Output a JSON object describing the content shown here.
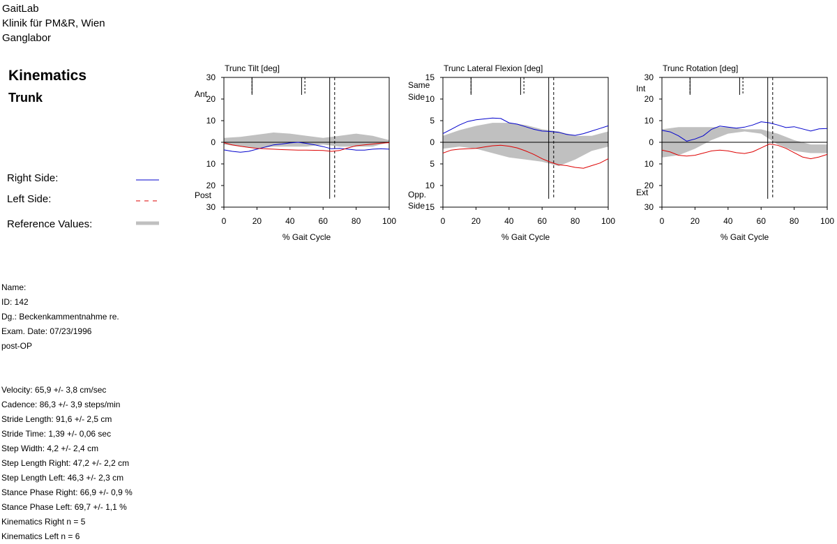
{
  "header": {
    "line1": "GaitLab",
    "line2": "Klinik für PM&R, Wien",
    "line3": "Ganglabor"
  },
  "section": {
    "title": "Kinematics",
    "subtitle": "Trunk"
  },
  "legend": {
    "right": {
      "label": "Right Side:",
      "color": "#0000cc"
    },
    "left": {
      "label": "Left Side:",
      "color": "#dd0000"
    },
    "reference": {
      "label": "Reference Values:",
      "color": "#c0c0c0"
    }
  },
  "patient": {
    "name": "Name:",
    "id": "ID: 142",
    "dg": "Dg.: Beckenkammentnahme re.",
    "exam_date": "Exam. Date: 07/23/1996",
    "status": "post-OP"
  },
  "params": [
    "Velocity: 65,9 +/- 3,8 cm/sec",
    "Cadence: 86,3 +/- 3,9 steps/min",
    "Stride Length:  91,6 +/- 2,5 cm",
    "Stride Time:  1,39 +/- 0,06 sec",
    "Step Width: 4,2 +/- 2,4 cm",
    "Step Length Right:  47,2 +/- 2,2 cm",
    "Step Length Left:  46,3 +/- 2,3 cm",
    "Stance Phase Right:  66,9 +/- 0,9 %",
    "Stance Phase Left:  69,7 +/- 1,1 %",
    "Kinematics Right n = 5",
    "Kinematics Left n = 6"
  ],
  "chart_data": [
    {
      "type": "line",
      "title": "Trunc Tilt [deg]",
      "xlabel": "% Gait Cycle",
      "top_label": "Ant",
      "bottom_label": "Post",
      "xlim": [
        0,
        100
      ],
      "ylim": [
        -30,
        30
      ],
      "y_ticks": [
        30,
        20,
        10,
        0,
        10,
        20,
        30
      ],
      "x_ticks": [
        0,
        20,
        40,
        60,
        80,
        100
      ],
      "events": {
        "right_opp_off": 17,
        "right_opp_contact": 47,
        "right_toe_off": 64,
        "left_opp_off": 17,
        "left_opp_contact": 49,
        "left_toe_off": 67
      },
      "reference": {
        "x": [
          0,
          10,
          20,
          30,
          40,
          50,
          60,
          70,
          80,
          90,
          100
        ],
        "upper": [
          2,
          2.5,
          3.5,
          4.5,
          4,
          3,
          2,
          3,
          4,
          3,
          1
        ],
        "lower": [
          -1,
          -2,
          -3,
          -2,
          -2,
          -2,
          -1,
          -2,
          -2,
          -2,
          0
        ]
      },
      "x": [
        0,
        5,
        10,
        15,
        20,
        25,
        30,
        35,
        40,
        45,
        50,
        55,
        60,
        65,
        70,
        75,
        80,
        85,
        90,
        95,
        100
      ],
      "series": [
        {
          "name": "Right Side",
          "color": "#0000cc",
          "values": [
            -3.5,
            -4.2,
            -4.6,
            -4.2,
            -3.2,
            -2.2,
            -1.2,
            -0.8,
            -0.3,
            0,
            -0.5,
            -1.2,
            -2,
            -3,
            -2.8,
            -3.2,
            -3.6,
            -3.6,
            -3.2,
            -3,
            -3.2
          ]
        },
        {
          "name": "Left Side",
          "color": "#dd0000",
          "values": [
            -0.2,
            -1.2,
            -1.8,
            -2.4,
            -2.8,
            -3,
            -3.2,
            -3.4,
            -3.5,
            -3.6,
            -3.6,
            -3.7,
            -3.8,
            -4.2,
            -3.8,
            -2.6,
            -1.6,
            -1.2,
            -0.8,
            -0.4,
            -0.2
          ]
        }
      ]
    },
    {
      "type": "line",
      "title": "Trunc Lateral Flexion [deg]",
      "xlabel": "% Gait Cycle",
      "top_label": "Same Side",
      "bottom_label": "Opp. Side",
      "xlim": [
        0,
        100
      ],
      "ylim": [
        -15,
        15
      ],
      "y_ticks": [
        15,
        10,
        5,
        0,
        5,
        10,
        15
      ],
      "x_ticks": [
        0,
        20,
        40,
        60,
        80,
        100
      ],
      "events": {
        "right_opp_off": 17,
        "right_opp_contact": 47,
        "right_toe_off": 64,
        "left_opp_off": 17,
        "left_opp_contact": 49,
        "left_toe_off": 67
      },
      "reference": {
        "x": [
          0,
          10,
          20,
          30,
          40,
          50,
          60,
          70,
          80,
          90,
          100
        ],
        "upper": [
          1.5,
          2.8,
          3.8,
          4.5,
          4.5,
          4,
          3,
          2.5,
          1.5,
          1.5,
          2.5
        ],
        "lower": [
          -1.5,
          -1,
          -1.5,
          -2.5,
          -3.5,
          -4,
          -4.5,
          -5.5,
          -4,
          -2,
          -1
        ]
      },
      "x": [
        0,
        5,
        10,
        15,
        20,
        25,
        30,
        35,
        40,
        45,
        50,
        55,
        60,
        65,
        70,
        75,
        80,
        85,
        90,
        95,
        100
      ],
      "series": [
        {
          "name": "Right Side",
          "color": "#0000cc",
          "values": [
            2,
            3,
            4,
            4.8,
            5.2,
            5.4,
            5.6,
            5.5,
            4.5,
            4.2,
            3.6,
            3,
            2.6,
            2.5,
            2.3,
            1.8,
            1.6,
            2,
            2.6,
            3.2,
            3.8
          ]
        },
        {
          "name": "Left Side",
          "color": "#dd0000",
          "values": [
            -2.5,
            -1.8,
            -1.6,
            -1.5,
            -1.4,
            -1.1,
            -0.8,
            -0.7,
            -0.9,
            -1.3,
            -2,
            -2.8,
            -3.8,
            -4.6,
            -5.2,
            -5.4,
            -5.8,
            -6,
            -5.4,
            -4.8,
            -3.8
          ]
        }
      ]
    },
    {
      "type": "line",
      "title": "Trunc Rotation [deg]",
      "xlabel": "% Gait Cycle",
      "top_label": "Int",
      "bottom_label": "Ext",
      "xlim": [
        0,
        100
      ],
      "ylim": [
        -30,
        30
      ],
      "y_ticks": [
        30,
        20,
        10,
        0,
        10,
        20,
        30
      ],
      "x_ticks": [
        0,
        20,
        40,
        60,
        80,
        100
      ],
      "events": {
        "right_opp_off": 17,
        "right_opp_contact": 47,
        "right_toe_off": 64,
        "left_opp_off": 17,
        "left_opp_contact": 49,
        "left_toe_off": 67
      },
      "reference": {
        "x": [
          0,
          10,
          20,
          30,
          40,
          50,
          60,
          70,
          80,
          90,
          100
        ],
        "upper": [
          6,
          7,
          7,
          7,
          7,
          6,
          6,
          4,
          1,
          -1,
          -1
        ],
        "lower": [
          -7,
          -6,
          -3,
          1,
          4,
          5,
          4,
          -1,
          -4,
          -5,
          -5
        ]
      },
      "x": [
        0,
        5,
        10,
        15,
        20,
        25,
        30,
        35,
        40,
        45,
        50,
        55,
        60,
        65,
        70,
        75,
        80,
        85,
        90,
        95,
        100
      ],
      "series": [
        {
          "name": "Right Side",
          "color": "#0000cc",
          "values": [
            5.5,
            4.8,
            3,
            0.5,
            1.5,
            3,
            6,
            7.5,
            7,
            6.5,
            7,
            8,
            9.5,
            9,
            8,
            6.8,
            7.2,
            6.2,
            5.2,
            6.2,
            6.4
          ]
        },
        {
          "name": "Left Side",
          "color": "#dd0000",
          "values": [
            -3.6,
            -4.5,
            -6,
            -6.4,
            -6,
            -5,
            -4,
            -3.6,
            -4,
            -4.8,
            -5.2,
            -4.4,
            -2.6,
            -0.8,
            -1.4,
            -2.8,
            -4.8,
            -6.8,
            -7.6,
            -6.8,
            -5.6
          ]
        }
      ]
    }
  ]
}
